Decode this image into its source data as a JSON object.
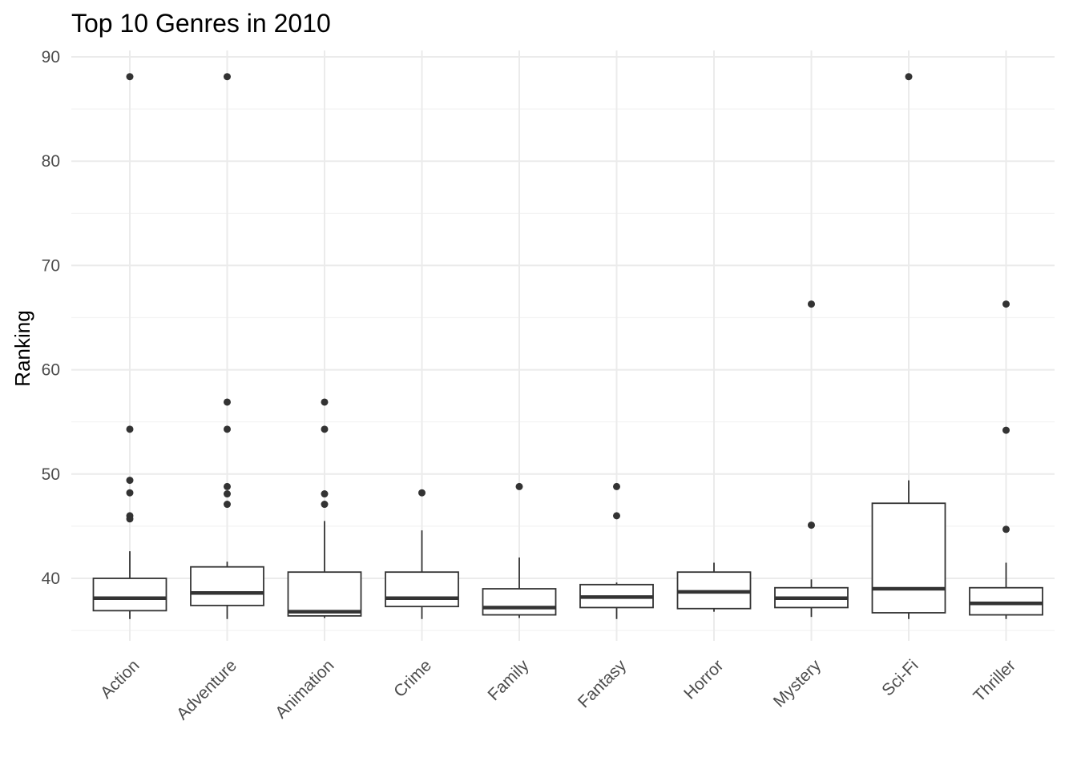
{
  "chart_data": {
    "type": "boxplot",
    "title": "Top 10 Genres in 2010",
    "xlabel": "",
    "ylabel": "Ranking",
    "ylim": [
      34.7,
      91.3
    ],
    "yticks": [
      40,
      50,
      60,
      70,
      80,
      90
    ],
    "grid": true,
    "legend": "none",
    "colors": {
      "box_stroke": "#333333",
      "box_fill": "#ffffff",
      "grid": "#ebebeb",
      "tick_text": "#4d4d4d"
    },
    "categories": [
      "Action",
      "Adventure",
      "Animation",
      "Crime",
      "Family",
      "Fantasy",
      "Horror",
      "Mystery",
      "Sci-Fi",
      "Thriller"
    ],
    "boxes": [
      {
        "category": "Action",
        "whisker_low": 36.1,
        "q1": 36.9,
        "median": 38.1,
        "q3": 40.0,
        "whisker_high": 42.6,
        "outliers": [
          54.3,
          49.4,
          48.2,
          46.0,
          45.7,
          88.1
        ]
      },
      {
        "category": "Adventure",
        "whisker_low": 36.1,
        "q1": 37.4,
        "median": 38.6,
        "q3": 41.1,
        "whisker_high": 41.6,
        "outliers": [
          56.9,
          54.3,
          48.8,
          48.1,
          47.1,
          88.1
        ]
      },
      {
        "category": "Animation",
        "whisker_low": 36.2,
        "q1": 36.4,
        "median": 36.8,
        "q3": 40.6,
        "whisker_high": 45.5,
        "outliers": [
          56.9,
          54.3,
          48.1,
          47.1
        ]
      },
      {
        "category": "Crime",
        "whisker_low": 36.1,
        "q1": 37.3,
        "median": 38.1,
        "q3": 40.6,
        "whisker_high": 44.6,
        "outliers": [
          48.2
        ]
      },
      {
        "category": "Family",
        "whisker_low": 36.2,
        "q1": 36.5,
        "median": 37.2,
        "q3": 39.0,
        "whisker_high": 42.0,
        "outliers": [
          48.8
        ]
      },
      {
        "category": "Fantasy",
        "whisker_low": 36.1,
        "q1": 37.2,
        "median": 38.2,
        "q3": 39.4,
        "whisker_high": 39.6,
        "outliers": [
          48.8,
          46.0
        ]
      },
      {
        "category": "Horror",
        "whisker_low": 36.8,
        "q1": 37.1,
        "median": 38.7,
        "q3": 40.6,
        "whisker_high": 41.5,
        "outliers": []
      },
      {
        "category": "Mystery",
        "whisker_low": 36.3,
        "q1": 37.2,
        "median": 38.1,
        "q3": 39.1,
        "whisker_high": 39.9,
        "outliers": [
          66.3,
          45.1
        ]
      },
      {
        "category": "Sci-Fi",
        "whisker_low": 36.1,
        "q1": 36.7,
        "median": 39.0,
        "q3": 47.2,
        "whisker_high": 49.4,
        "outliers": [
          88.1
        ]
      },
      {
        "category": "Thriller",
        "whisker_low": 36.1,
        "q1": 36.5,
        "median": 37.6,
        "q3": 39.1,
        "whisker_high": 41.5,
        "outliers": [
          66.3,
          54.2,
          44.7
        ]
      }
    ]
  }
}
